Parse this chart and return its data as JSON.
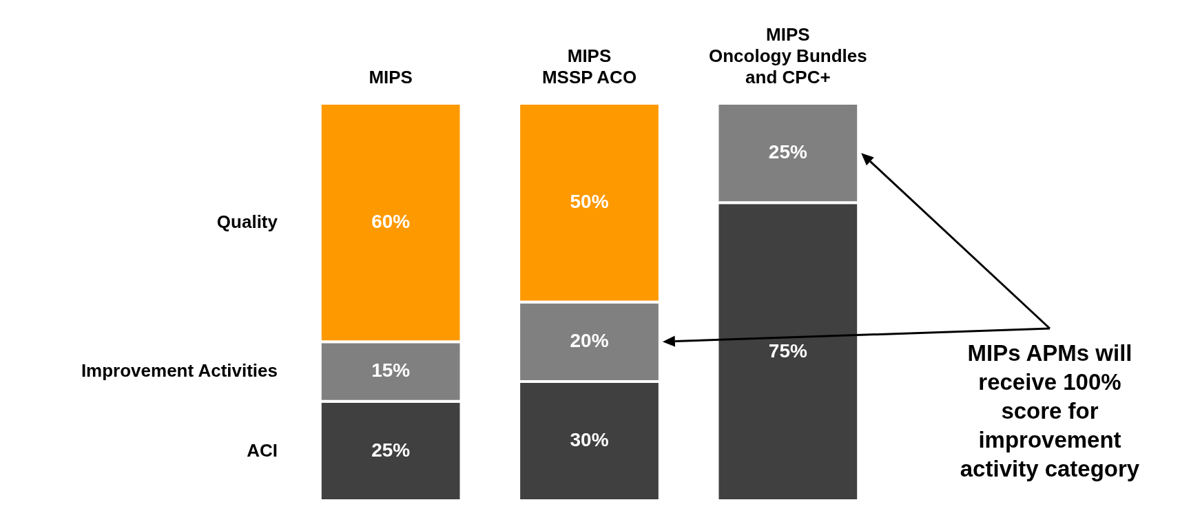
{
  "chart_data": {
    "type": "bar",
    "stacked": true,
    "categories": [
      "MIPS",
      "MIPS\nMSSP ACO",
      "MIPS\nOncology Bundles\nand CPC+"
    ],
    "series": [
      {
        "name": "ACI",
        "color": "#404040",
        "values": [
          25,
          30,
          75
        ],
        "value_labels": [
          "25%",
          "30%",
          "75%"
        ]
      },
      {
        "name": "Improvement Activities",
        "color": "#808080",
        "values": [
          15,
          20,
          25
        ],
        "value_labels": [
          "15%",
          "20%",
          "25%"
        ]
      },
      {
        "name": "Quality",
        "color": "#ff9900",
        "values": [
          60,
          50,
          null
        ],
        "value_labels": [
          "60%",
          "50%",
          null
        ]
      }
    ],
    "ylim": [
      0,
      100
    ],
    "tick_labels": "x",
    "legend": false,
    "annotations": [
      "MIPs APMs will\nreceive 100%\nscore for\nimprovement\nactivity category"
    ]
  }
}
